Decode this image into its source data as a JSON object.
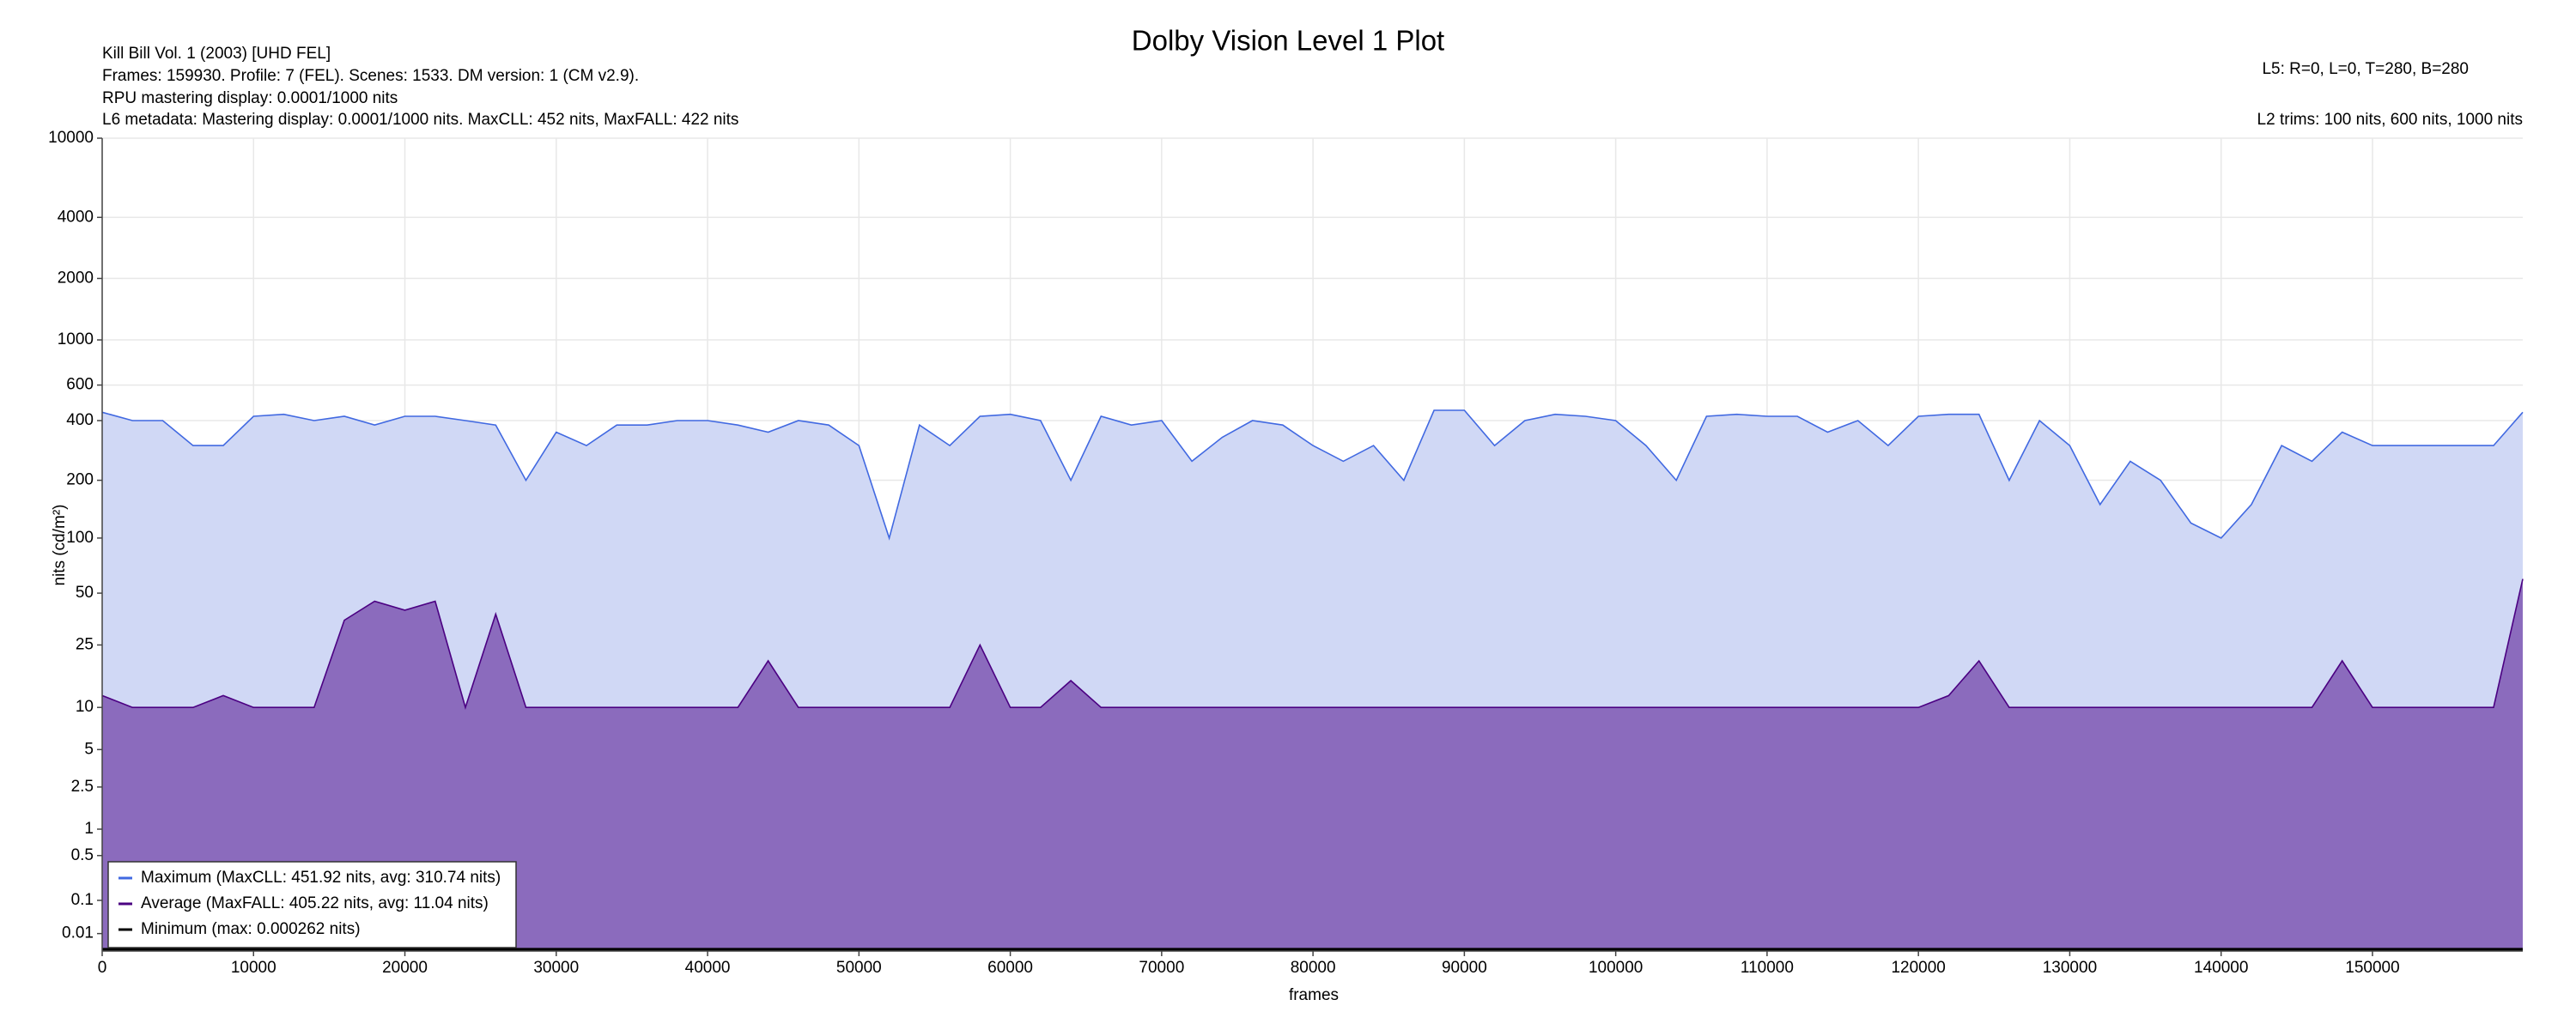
{
  "chart_data": {
    "type": "area",
    "title": "Dolby Vision Level 1 Plot",
    "header": {
      "info_lines": [
        "Kill Bill Vol. 1 (2003) [UHD FEL]",
        "Frames: 159930. Profile: 7 (FEL). Scenes: 1533. DM version: 1 (CM v2.9).",
        "RPU mastering display: 0.0001/1000 nits",
        "L6 metadata: Mastering display: 0.0001/1000 nits. MaxCLL: 452 nits, MaxFALL: 422 nits"
      ],
      "l5": "L5: R=0, L=0, T=280, B=280",
      "l2": "L2 trims: 100 nits, 600 nits, 1000 nits"
    },
    "xlabel": "frames",
    "ylabel": "nits (cd/m²)",
    "yscale": "pq",
    "grid": true,
    "legend": "lower left",
    "xlim": [
      0,
      159930
    ],
    "xticks": [
      0,
      10000,
      20000,
      30000,
      40000,
      50000,
      60000,
      70000,
      80000,
      90000,
      100000,
      110000,
      120000,
      130000,
      140000,
      150000
    ],
    "ylim": [
      0,
      10000
    ],
    "yticks": [
      0.01,
      0.1,
      0.5,
      1,
      2.5,
      5,
      10,
      25,
      50,
      100,
      200,
      400,
      600,
      1000,
      2000,
      4000,
      10000
    ],
    "x": [
      0,
      2000,
      4000,
      6000,
      8000,
      10000,
      12000,
      14000,
      16000,
      18000,
      20000,
      22000,
      24000,
      26000,
      28000,
      30000,
      32000,
      34000,
      36000,
      38000,
      40000,
      42000,
      44000,
      46000,
      48000,
      50000,
      52000,
      54000,
      56000,
      58000,
      60000,
      62000,
      64000,
      66000,
      68000,
      70000,
      72000,
      74000,
      76000,
      78000,
      80000,
      82000,
      84000,
      86000,
      88000,
      90000,
      92000,
      94000,
      96000,
      98000,
      100000,
      102000,
      104000,
      106000,
      108000,
      110000,
      112000,
      114000,
      116000,
      118000,
      120000,
      122000,
      124000,
      126000,
      128000,
      130000,
      132000,
      134000,
      136000,
      138000,
      140000,
      142000,
      144000,
      146000,
      148000,
      150000,
      152000,
      154000,
      156000,
      158000,
      159930
    ],
    "series": [
      {
        "name": "Maximum (MaxCLL: 451.92 nits, avg: 310.74 nits)",
        "color": "#4169e1",
        "fill": "#d0d8f5",
        "values": [
          440,
          400,
          400,
          300,
          300,
          420,
          430,
          400,
          420,
          380,
          420,
          420,
          400,
          380,
          200,
          350,
          300,
          380,
          380,
          400,
          400,
          380,
          350,
          400,
          380,
          300,
          100,
          380,
          300,
          420,
          430,
          400,
          200,
          420,
          380,
          400,
          250,
          330,
          400,
          380,
          300,
          250,
          300,
          200,
          450,
          450,
          300,
          400,
          430,
          420,
          400,
          300,
          200,
          420,
          430,
          420,
          420,
          350,
          400,
          300,
          420,
          430,
          430,
          200,
          400,
          300,
          150,
          250,
          200,
          120,
          100,
          150,
          300,
          250,
          350,
          300,
          300,
          300,
          300,
          300,
          440
        ]
      },
      {
        "name": "Average (MaxFALL: 405.22 nits, avg: 11.04 nits)",
        "color": "#4b0082",
        "fill": "#8b6bbd",
        "values": [
          12,
          10,
          10,
          10,
          12,
          10,
          10,
          10,
          35,
          45,
          40,
          45,
          10,
          38,
          10,
          10,
          10,
          10,
          10,
          10,
          10,
          10,
          20,
          10,
          10,
          10,
          10,
          10,
          10,
          25,
          10,
          10,
          15,
          10,
          10,
          10,
          10,
          10,
          10,
          10,
          10,
          10,
          10,
          10,
          10,
          10,
          10,
          10,
          10,
          10,
          10,
          10,
          10,
          10,
          10,
          10,
          10,
          10,
          10,
          10,
          10,
          12,
          20,
          10,
          10,
          10,
          10,
          10,
          10,
          10,
          10,
          10,
          10,
          10,
          20,
          10,
          10,
          10,
          10,
          10,
          60
        ]
      },
      {
        "name": "Minimum (max: 0.000262 nits)",
        "color": "#000000",
        "fill": "none",
        "values": [
          0.0001,
          0.0001,
          0.0001,
          0.0001,
          0.0001,
          0.0001,
          0.0001,
          0.0001,
          0.0001,
          0.0001,
          0.0001,
          0.0001,
          0.0001,
          0.0001,
          0.0001,
          0.0001,
          0.0001,
          0.0001,
          0.0001,
          0.0001,
          0.0001,
          0.0001,
          0.0001,
          0.0001,
          0.0001,
          0.0001,
          0.0001,
          0.0001,
          0.0001,
          0.0001,
          0.0001,
          0.0001,
          0.0001,
          0.0001,
          0.0001,
          0.0001,
          0.0001,
          0.0001,
          0.0001,
          0.0001,
          0.0001,
          0.0001,
          0.0001,
          0.0001,
          0.0001,
          0.0001,
          0.0001,
          0.0001,
          0.0001,
          0.0001,
          0.0001,
          0.0001,
          0.0001,
          0.0001,
          0.0001,
          0.0001,
          0.0001,
          0.0001,
          0.0001,
          0.0001,
          0.0001,
          0.0001,
          0.0001,
          0.0001,
          0.0001,
          0.0001,
          0.0001,
          0.0001,
          0.0001,
          0.0001,
          0.0001,
          0.0001,
          0.0001,
          0.0001,
          0.0001,
          0.0001,
          0.0001,
          0.0001,
          0.0001,
          0.0001,
          0.0001
        ]
      }
    ]
  }
}
